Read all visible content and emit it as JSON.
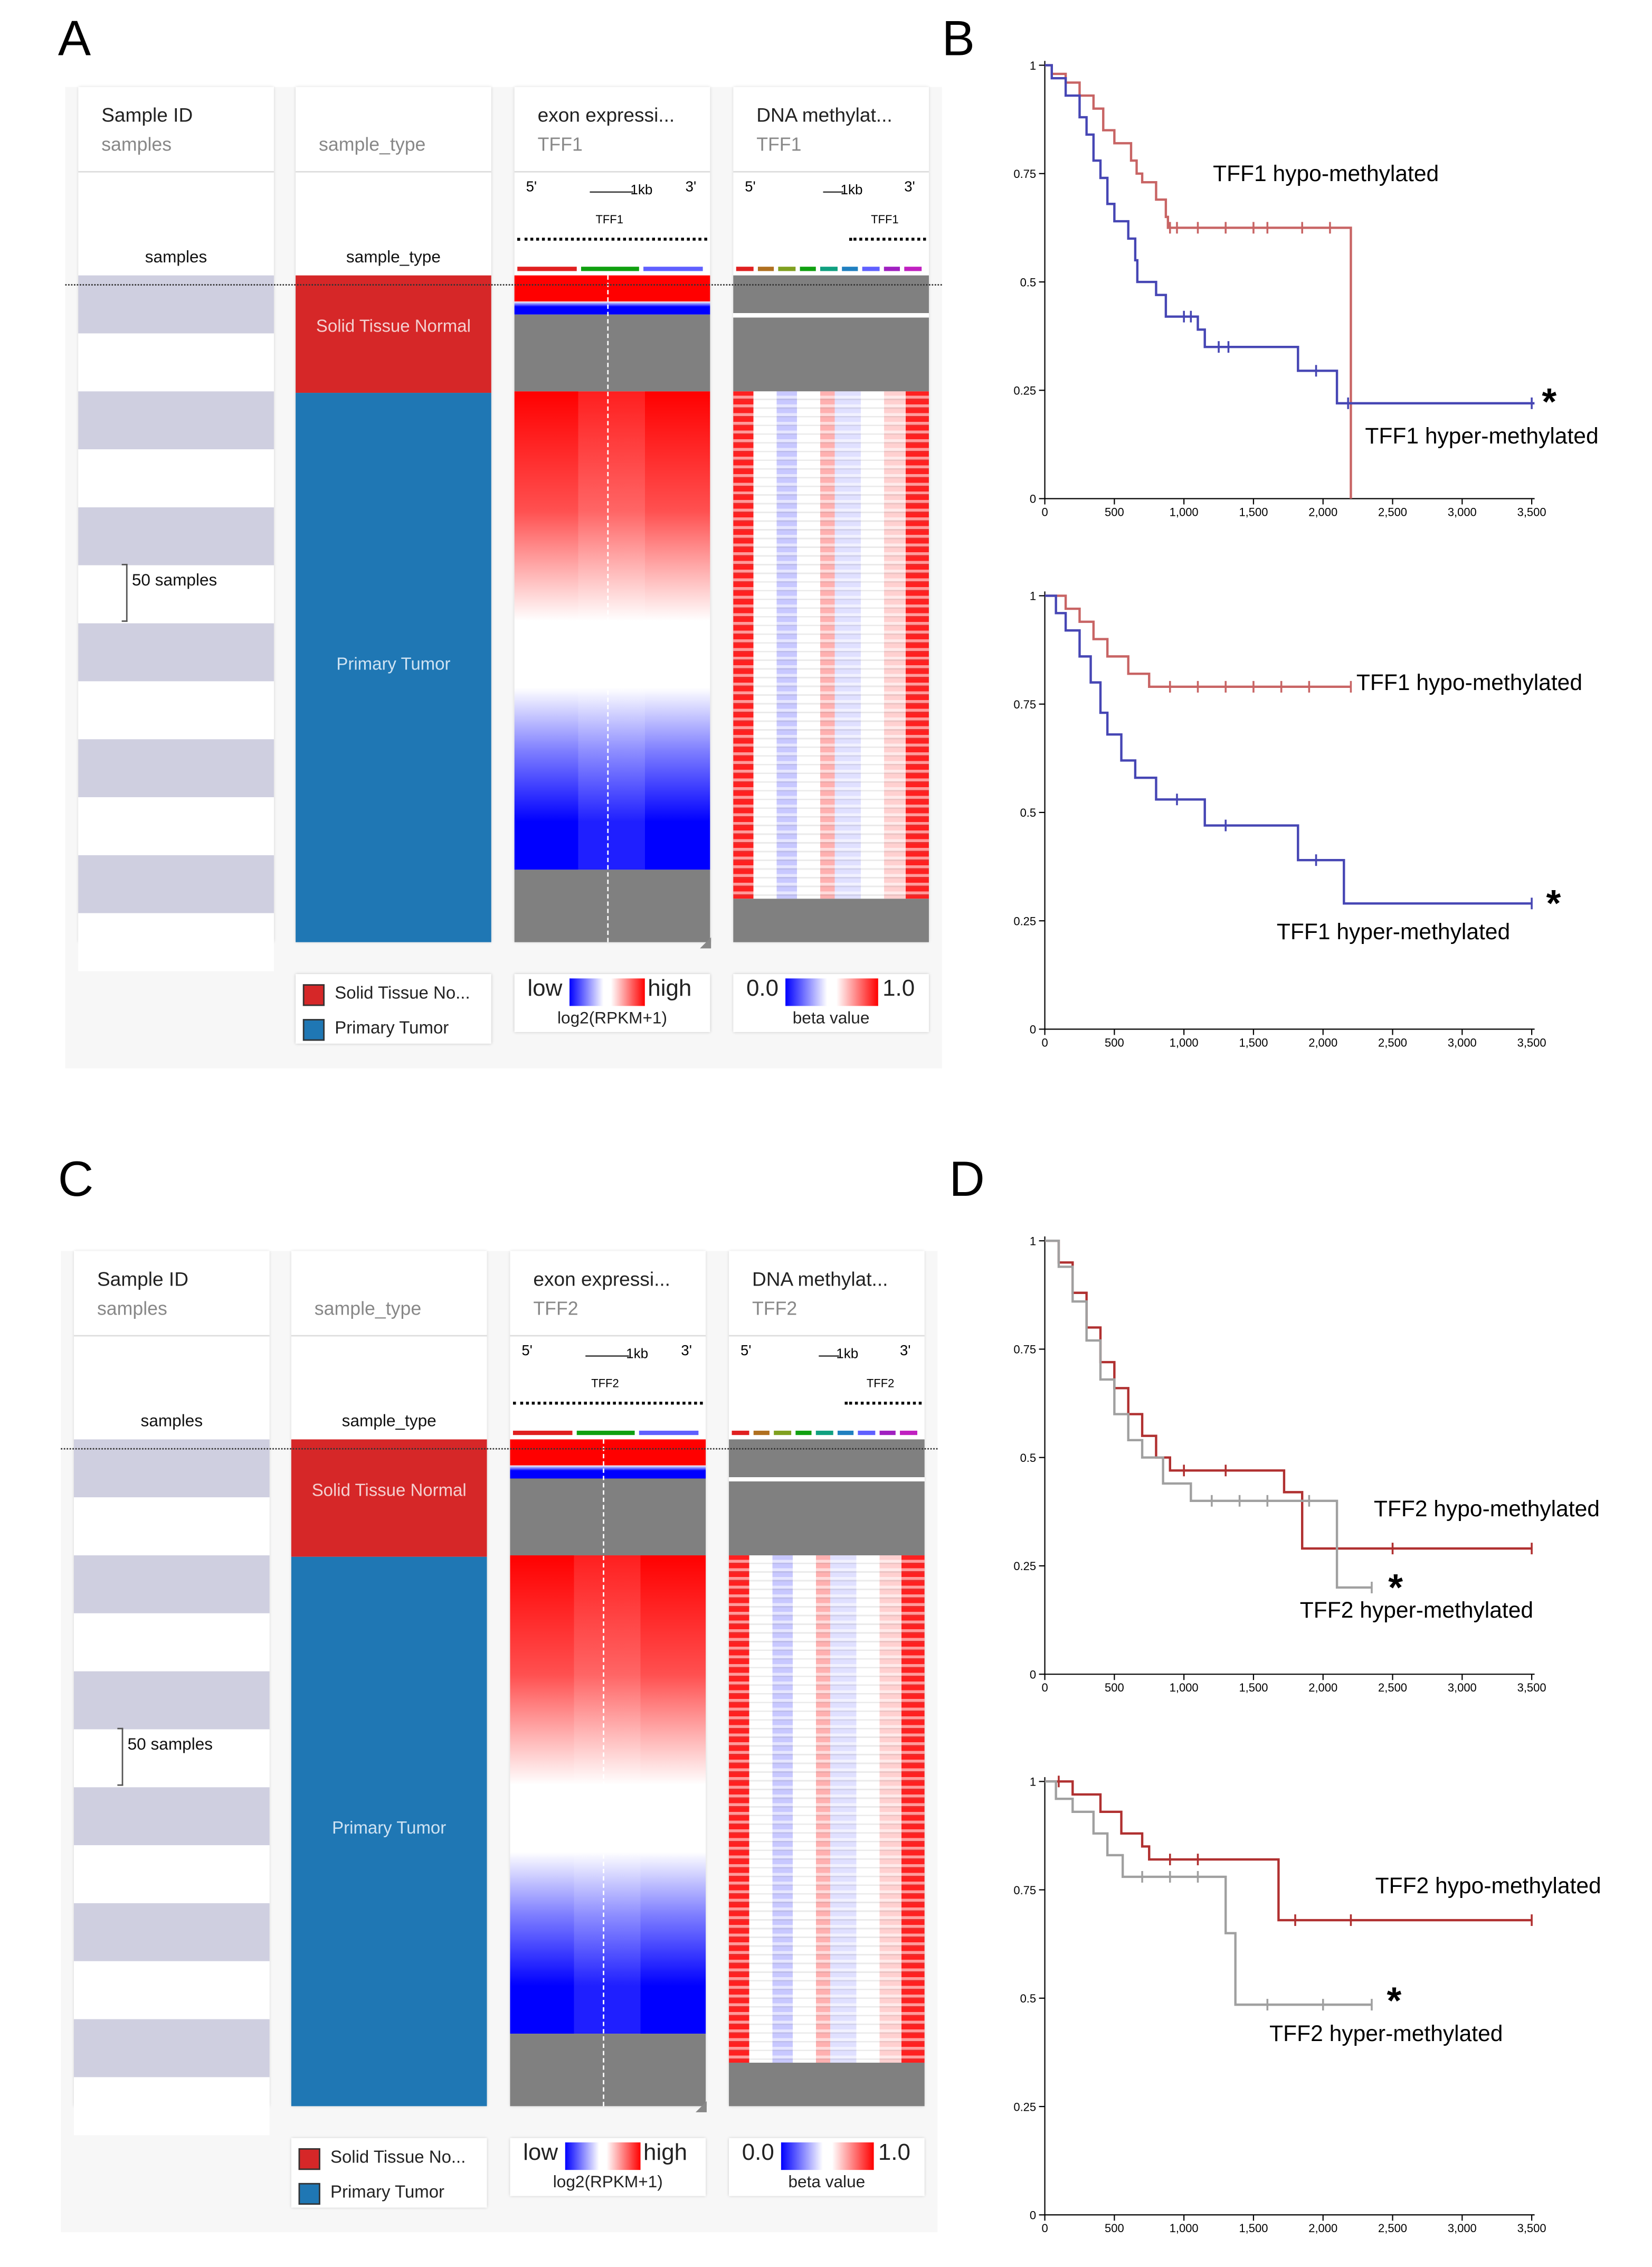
{
  "panel_labels": {
    "a": "A",
    "b": "B",
    "c": "C",
    "d": "D"
  },
  "panel_a": {
    "gene": "TFF1",
    "columns": {
      "sample_id": {
        "title": "Sample ID",
        "subtitle": "samples",
        "axis_label": "samples"
      },
      "sample_type": {
        "title": "",
        "subtitle": "sample_type",
        "axis_label": "sample_type",
        "normal_label": "Solid Tissue Normal",
        "tumor_label": "Primary Tumor"
      },
      "exon": {
        "title": "exon expressi...",
        "subtitle": "TFF1",
        "five": "5'",
        "three": "3'",
        "scale": "1kb",
        "gene_label": "TFF1"
      },
      "methylation": {
        "title": "DNA methylat...",
        "subtitle": "TFF1",
        "five": "5'",
        "three": "3'",
        "scale": "1kb",
        "gene_label": "TFF1"
      }
    },
    "bracket_label": "50 samples",
    "legend_type": {
      "items": [
        "Solid Tissue No...",
        "Primary Tumor"
      ]
    },
    "legend_exon": {
      "low": "low",
      "high": "high",
      "unit": "log2(RPKM+1)"
    },
    "legend_meth": {
      "low": "0.0",
      "high": "1.0",
      "unit": "beta value"
    }
  },
  "panel_c": {
    "gene": "TFF2",
    "columns": {
      "sample_id": {
        "title": "Sample ID",
        "subtitle": "samples",
        "axis_label": "samples"
      },
      "sample_type": {
        "title": "",
        "subtitle": "sample_type",
        "axis_label": "sample_type",
        "normal_label": "Solid Tissue Normal",
        "tumor_label": "Primary Tumor"
      },
      "exon": {
        "title": "exon expressi...",
        "subtitle": "TFF2",
        "five": "5'",
        "three": "3'",
        "scale": "1kb",
        "gene_label": "TFF2"
      },
      "methylation": {
        "title": "DNA methylat...",
        "subtitle": "TFF2",
        "five": "5'",
        "three": "3'",
        "scale": "1kb",
        "gene_label": "TFF2"
      }
    },
    "bracket_label": "50 samples",
    "legend_type": {
      "items": [
        "Solid Tissue No...",
        "Primary Tumor"
      ]
    },
    "legend_exon": {
      "low": "low",
      "high": "high",
      "unit": "log2(RPKM+1)"
    },
    "legend_meth": {
      "low": "0.0",
      "high": "1.0",
      "unit": "beta value"
    }
  },
  "colors": {
    "normal": "#d62728",
    "tumor": "#1f77b4",
    "stripe": "#cfcfe0",
    "hypoB": "#c86464",
    "hyperB": "#4646b4",
    "hypoD": "#b03030",
    "hyperD": "#a0a0a0"
  },
  "chart_data": [
    {
      "type": "line",
      "panel": "B-top",
      "xlim": [
        0,
        3500
      ],
      "ylim": [
        0,
        1
      ],
      "xticks": [
        "0",
        "500",
        "1,000",
        "1,500",
        "2,000",
        "2,500",
        "3,000",
        "3,500"
      ],
      "yticks": [
        "0",
        "0.25",
        "0.5",
        "0.75",
        "1"
      ],
      "series": [
        {
          "name": "TFF1 hypo-methylated",
          "color": "hypoB",
          "steps": [
            [
              0,
              1
            ],
            [
              50,
              0.98
            ],
            [
              150,
              0.96
            ],
            [
              250,
              0.93
            ],
            [
              350,
              0.9
            ],
            [
              420,
              0.85
            ],
            [
              500,
              0.82
            ],
            [
              620,
              0.78
            ],
            [
              660,
              0.75
            ],
            [
              700,
              0.73
            ],
            [
              800,
              0.69
            ],
            [
              870,
              0.65
            ],
            [
              885,
              0.625
            ],
            [
              2200,
              0
            ],
            [
              2200,
              0
            ]
          ],
          "censor": [
            [
              900,
              0.625
            ],
            [
              950,
              0.625
            ],
            [
              1100,
              0.625
            ],
            [
              1300,
              0.625
            ],
            [
              1500,
              0.625
            ],
            [
              1600,
              0.625
            ],
            [
              1850,
              0.625
            ],
            [
              2050,
              0.625
            ]
          ]
        },
        {
          "name": "TFF1 hyper-methylated",
          "color": "hyperB",
          "steps": [
            [
              0,
              1
            ],
            [
              50,
              0.97
            ],
            [
              150,
              0.93
            ],
            [
              250,
              0.88
            ],
            [
              300,
              0.84
            ],
            [
              350,
              0.78
            ],
            [
              400,
              0.74
            ],
            [
              450,
              0.68
            ],
            [
              500,
              0.64
            ],
            [
              600,
              0.6
            ],
            [
              650,
              0.55
            ],
            [
              665,
              0.5
            ],
            [
              800,
              0.47
            ],
            [
              870,
              0.42
            ],
            [
              1100,
              0.39
            ],
            [
              1150,
              0.35
            ],
            [
              1820,
              0.295
            ],
            [
              2100,
              0.22
            ],
            [
              3520,
              0.22
            ]
          ],
          "censor": [
            [
              1000,
              0.42
            ],
            [
              1050,
              0.42
            ],
            [
              1250,
              0.35
            ],
            [
              1320,
              0.35
            ],
            [
              1950,
              0.295
            ],
            [
              2180,
              0.22
            ],
            [
              3500,
              0.22
            ]
          ]
        }
      ],
      "annotations": [
        "TFF1 hypo-methylated",
        "TFF1 hyper-methylated",
        "*"
      ]
    },
    {
      "type": "line",
      "panel": "B-bottom",
      "xlim": [
        0,
        3500
      ],
      "ylim": [
        0,
        1
      ],
      "xticks": [
        "0",
        "500",
        "1,000",
        "1,500",
        "2,000",
        "2,500",
        "3,000",
        "3,500"
      ],
      "yticks": [
        "0",
        "0.25",
        "0.5",
        "0.75",
        "1"
      ],
      "series": [
        {
          "name": "TFF1 hypo-methylated",
          "color": "hypoB",
          "steps": [
            [
              0,
              1
            ],
            [
              150,
              0.97
            ],
            [
              250,
              0.94
            ],
            [
              350,
              0.9
            ],
            [
              450,
              0.86
            ],
            [
              600,
              0.82
            ],
            [
              750,
              0.79
            ],
            [
              2200,
              0.79
            ]
          ],
          "censor": [
            [
              900,
              0.79
            ],
            [
              1100,
              0.79
            ],
            [
              1300,
              0.79
            ],
            [
              1500,
              0.79
            ],
            [
              1700,
              0.79
            ],
            [
              1900,
              0.79
            ],
            [
              2200,
              0.79
            ]
          ]
        },
        {
          "name": "TFF1 hyper-methylated",
          "color": "hyperB",
          "steps": [
            [
              0,
              1
            ],
            [
              80,
              0.96
            ],
            [
              150,
              0.92
            ],
            [
              250,
              0.86
            ],
            [
              330,
              0.8
            ],
            [
              400,
              0.73
            ],
            [
              450,
              0.68
            ],
            [
              550,
              0.62
            ],
            [
              650,
              0.58
            ],
            [
              800,
              0.53
            ],
            [
              1150,
              0.47
            ],
            [
              1820,
              0.39
            ],
            [
              2150,
              0.29
            ],
            [
              3500,
              0.29
            ]
          ],
          "censor": [
            [
              950,
              0.53
            ],
            [
              1300,
              0.47
            ],
            [
              1950,
              0.39
            ],
            [
              3500,
              0.29
            ]
          ]
        }
      ],
      "annotations": [
        "TFF1 hypo-methylated",
        "TFF1 hyper-methylated",
        "*"
      ]
    },
    {
      "type": "line",
      "panel": "D-top",
      "xlim": [
        0,
        3500
      ],
      "ylim": [
        0,
        1
      ],
      "xticks": [
        "0",
        "500",
        "1,000",
        "1,500",
        "2,000",
        "2,500",
        "3,000",
        "3,500"
      ],
      "yticks": [
        "0",
        "0.25",
        "0.5",
        "0.75",
        "1"
      ],
      "series": [
        {
          "name": "TFF2 hypo-methylated",
          "color": "hypoD",
          "steps": [
            [
              0,
              1
            ],
            [
              100,
              0.95
            ],
            [
              200,
              0.88
            ],
            [
              300,
              0.8
            ],
            [
              400,
              0.72
            ],
            [
              500,
              0.66
            ],
            [
              600,
              0.6
            ],
            [
              700,
              0.55
            ],
            [
              800,
              0.5
            ],
            [
              900,
              0.47
            ],
            [
              1720,
              0.42
            ],
            [
              1850,
              0.29
            ],
            [
              3500,
              0.29
            ]
          ],
          "censor": [
            [
              1000,
              0.47
            ],
            [
              1300,
              0.47
            ],
            [
              2100,
              0.29
            ],
            [
              2500,
              0.29
            ],
            [
              3500,
              0.29
            ]
          ]
        },
        {
          "name": "TFF2 hyper-methylated",
          "color": "hyperD",
          "steps": [
            [
              0,
              1
            ],
            [
              100,
              0.94
            ],
            [
              200,
              0.86
            ],
            [
              300,
              0.77
            ],
            [
              400,
              0.68
            ],
            [
              500,
              0.6
            ],
            [
              600,
              0.54
            ],
            [
              700,
              0.5
            ],
            [
              850,
              0.44
            ],
            [
              1050,
              0.4
            ],
            [
              2100,
              0.2
            ],
            [
              2350,
              0.2
            ]
          ],
          "censor": [
            [
              1200,
              0.4
            ],
            [
              1400,
              0.4
            ],
            [
              1600,
              0.4
            ],
            [
              1900,
              0.4
            ],
            [
              2350,
              0.2
            ]
          ]
        }
      ],
      "annotations": [
        "TFF2 hypo-methylated",
        "TFF2 hyper-methylated",
        "*"
      ]
    },
    {
      "type": "line",
      "panel": "D-bottom",
      "xlim": [
        0,
        3500
      ],
      "ylim": [
        0,
        1
      ],
      "xticks": [
        "0",
        "500",
        "1,000",
        "1,500",
        "2,000",
        "2,500",
        "3,000",
        "3,500"
      ],
      "yticks": [
        "0",
        "0.25",
        "0.5",
        "0.75",
        "1"
      ],
      "series": [
        {
          "name": "TFF2 hypo-methylated",
          "color": "hypoD",
          "steps": [
            [
              0,
              1
            ],
            [
              200,
              0.97
            ],
            [
              400,
              0.93
            ],
            [
              550,
              0.88
            ],
            [
              700,
              0.85
            ],
            [
              750,
              0.82
            ],
            [
              1680,
              0.68
            ],
            [
              3500,
              0.68
            ]
          ],
          "censor": [
            [
              100,
              1
            ],
            [
              900,
              0.82
            ],
            [
              1100,
              0.82
            ],
            [
              1800,
              0.68
            ],
            [
              2200,
              0.68
            ],
            [
              3500,
              0.68
            ]
          ]
        },
        {
          "name": "TFF2 hyper-methylated",
          "color": "hyperD",
          "steps": [
            [
              0,
              1
            ],
            [
              80,
              0.96
            ],
            [
              200,
              0.93
            ],
            [
              350,
              0.88
            ],
            [
              450,
              0.83
            ],
            [
              560,
              0.78
            ],
            [
              1300,
              0.65
            ],
            [
              1370,
              0.485
            ],
            [
              2350,
              0.485
            ]
          ],
          "censor": [
            [
              700,
              0.78
            ],
            [
              900,
              0.78
            ],
            [
              1100,
              0.78
            ],
            [
              1600,
              0.485
            ],
            [
              2000,
              0.485
            ],
            [
              2350,
              0.485
            ]
          ]
        }
      ],
      "annotations": [
        "TFF2 hypo-methylated",
        "TFF2 hyper-methylated",
        "*"
      ]
    }
  ]
}
